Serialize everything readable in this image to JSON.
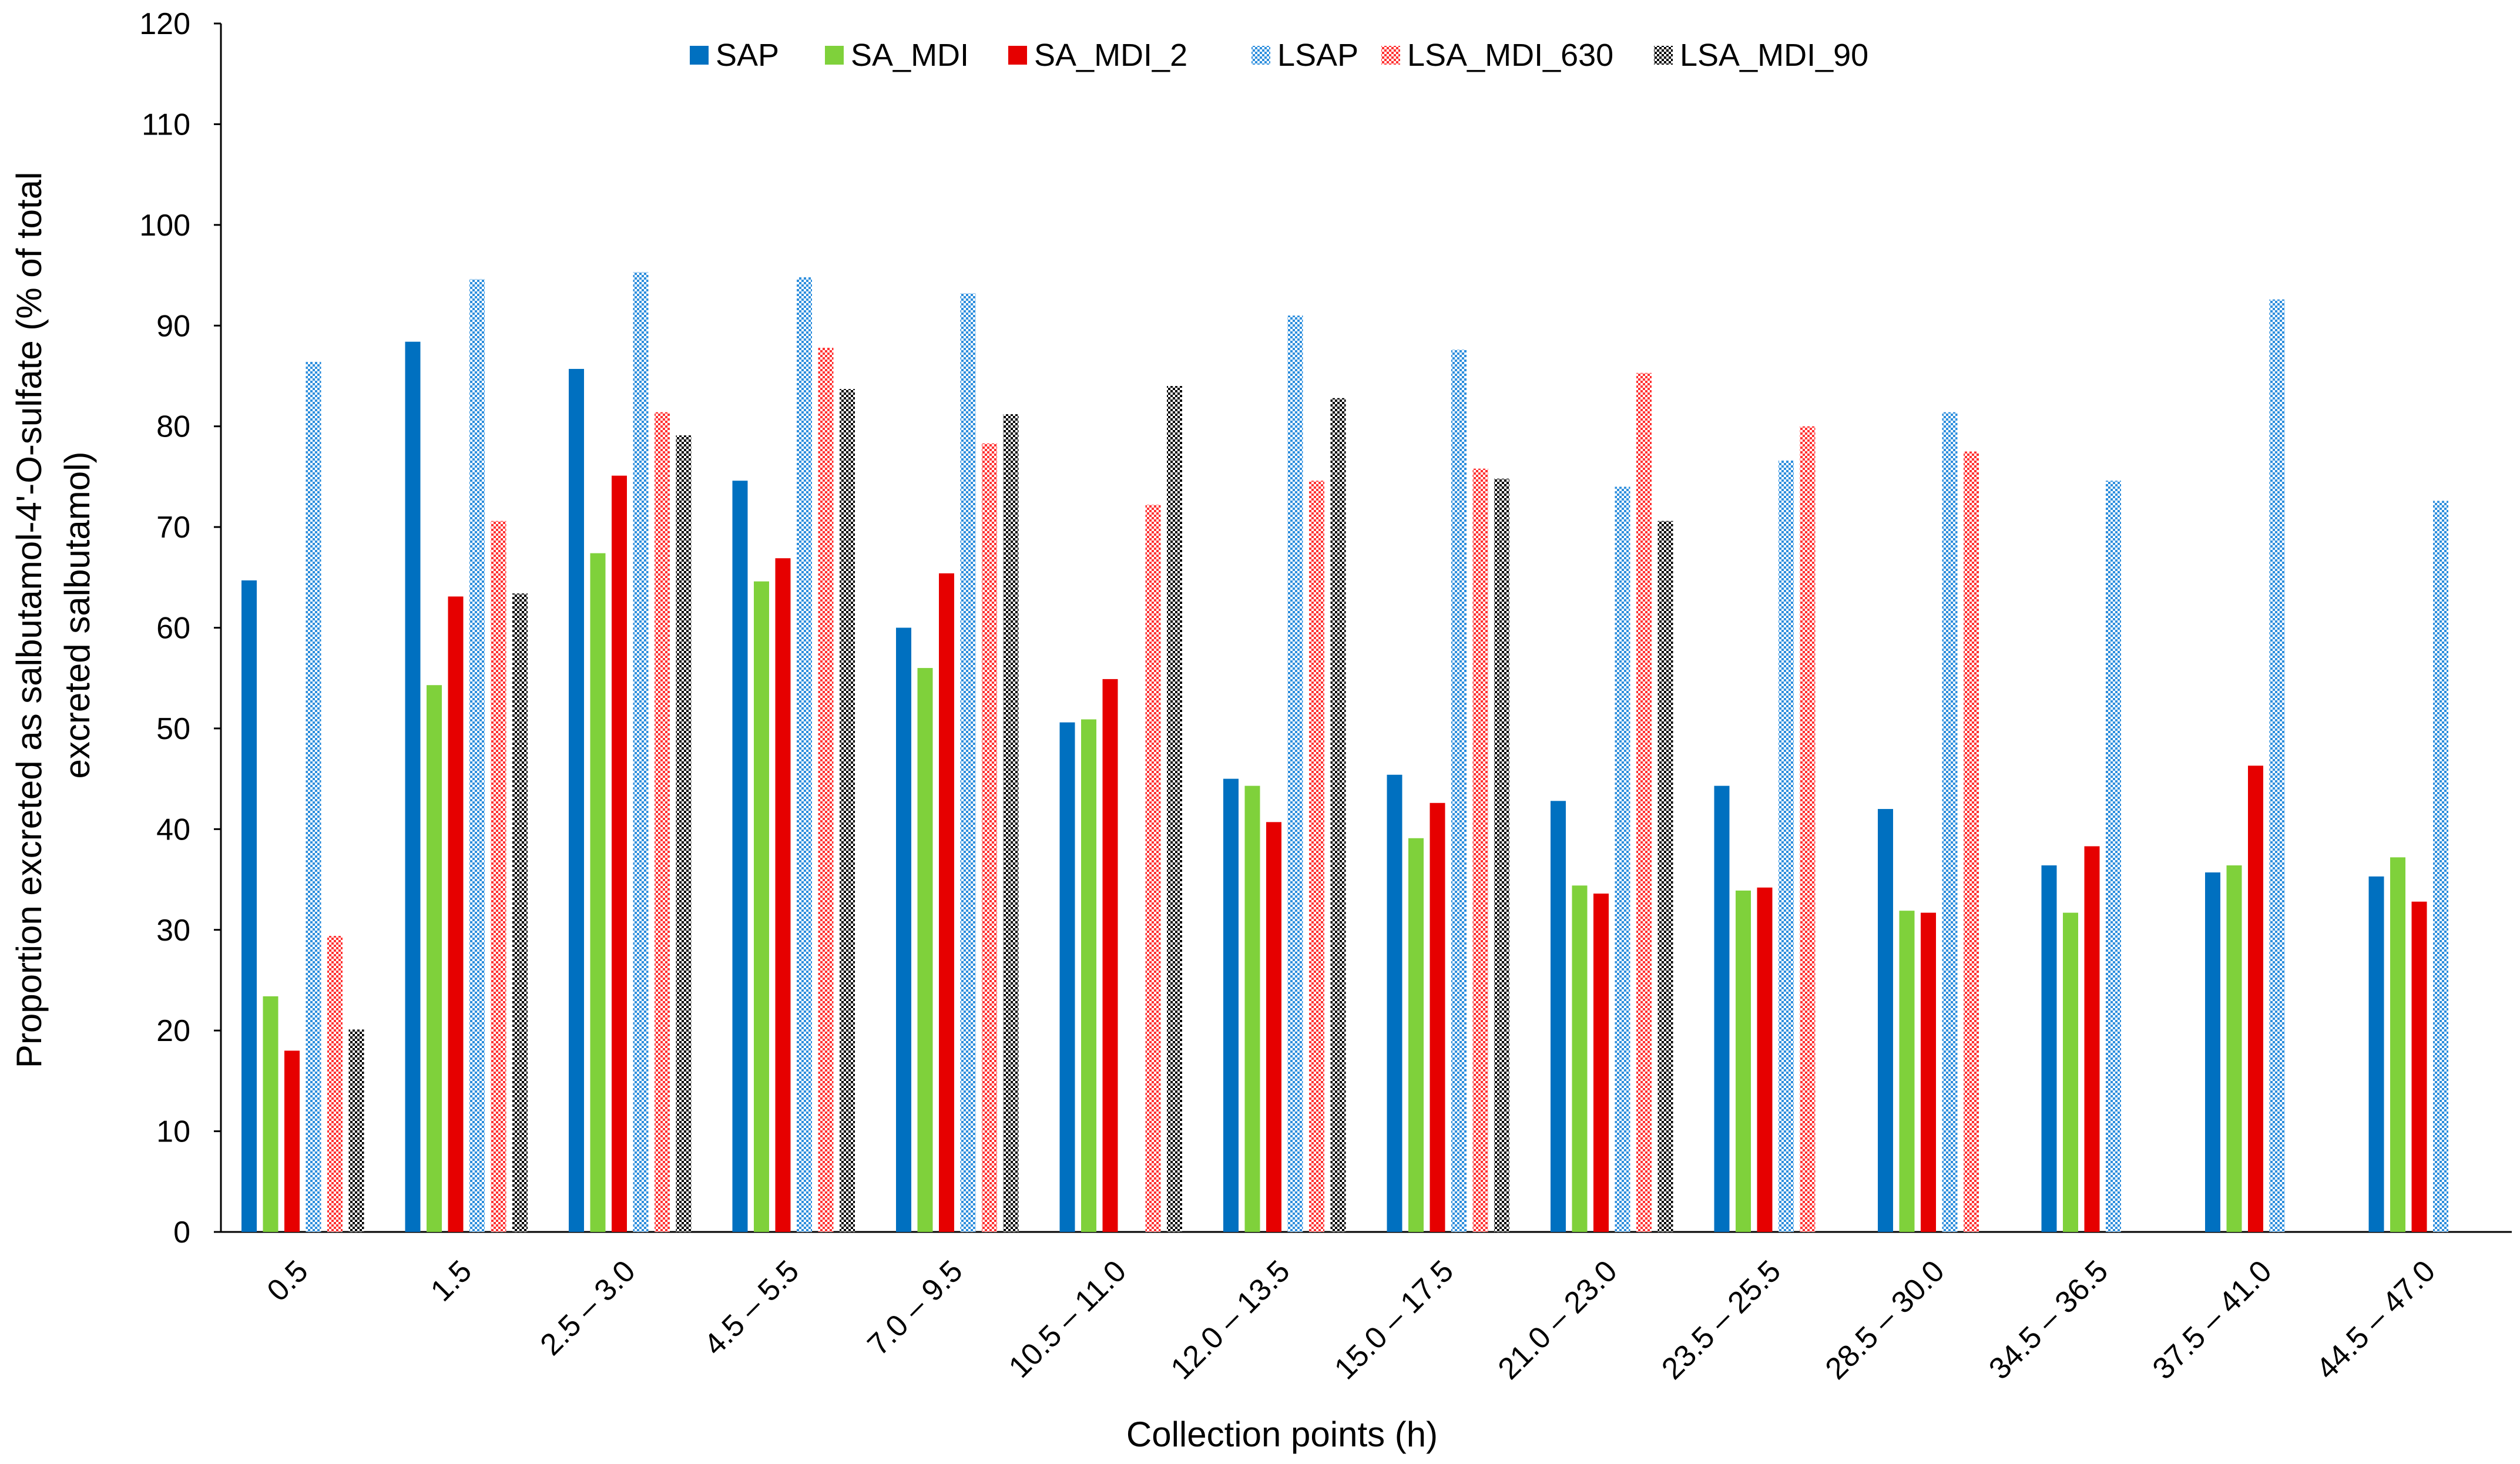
{
  "chart_data": {
    "type": "bar",
    "title": "",
    "xlabel": "Collection points (h)",
    "ylabel": [
      "Proportion excreted as salbutamol-4'-O-sulfate (% of total",
      "excreted salbutamol)"
    ],
    "ylim": [
      0,
      120
    ],
    "yticks": [
      0,
      10,
      20,
      30,
      40,
      50,
      60,
      70,
      80,
      90,
      100,
      110,
      120
    ],
    "grid": false,
    "legend_position": "top-center",
    "categories": [
      "0.5",
      "1.5",
      "2.5 – 3.0",
      "4.5 – 5.5",
      "7.0 – 9.5",
      "10.5 – 11.0",
      "12.0 – 13.5",
      "15.0 – 17.5",
      "21.0 – 23.0",
      "23.5 – 25.5",
      "28.5 – 30.0",
      "34.5 – 36.5",
      "37.5 – 41.0",
      "44.5 – 47.0"
    ],
    "series": [
      {
        "name": "SAP",
        "color": "#0070C0",
        "pattern": "solid",
        "values": [
          64.7,
          88.4,
          85.7,
          74.6,
          60.0,
          50.6,
          45.0,
          45.4,
          42.8,
          44.3,
          42.0,
          36.4,
          35.7,
          35.3
        ]
      },
      {
        "name": "SA_MDI",
        "color": "#7FD13B",
        "pattern": "solid",
        "values": [
          23.4,
          54.3,
          67.4,
          64.6,
          56.0,
          50.9,
          44.3,
          39.1,
          34.4,
          33.9,
          31.9,
          31.7,
          36.4,
          37.2
        ]
      },
      {
        "name": "SA_MDI_2",
        "color": "#E60000",
        "pattern": "solid",
        "values": [
          18.0,
          63.1,
          75.1,
          66.9,
          65.4,
          54.9,
          40.7,
          42.6,
          33.6,
          34.2,
          31.7,
          38.3,
          46.3,
          32.8
        ]
      },
      {
        "name": "LSAP",
        "color": "#2F8FDD",
        "pattern": "checker",
        "values": [
          86.4,
          94.6,
          95.3,
          94.8,
          93.2,
          null,
          91.0,
          87.6,
          74.0,
          76.6,
          81.4,
          74.6,
          92.6,
          72.6
        ]
      },
      {
        "name": "LSA_MDI_630",
        "color": "#FF3333",
        "pattern": "checker",
        "values": [
          29.4,
          70.6,
          81.4,
          87.8,
          78.3,
          72.2,
          74.6,
          75.8,
          85.3,
          80.0,
          77.5,
          null,
          null,
          null
        ]
      },
      {
        "name": "LSA_MDI_90",
        "color": "#000000",
        "pattern": "checker",
        "values": [
          20.1,
          63.4,
          79.1,
          83.7,
          81.2,
          84.0,
          82.8,
          74.8,
          70.6,
          null,
          null,
          null,
          null,
          null
        ]
      }
    ]
  }
}
